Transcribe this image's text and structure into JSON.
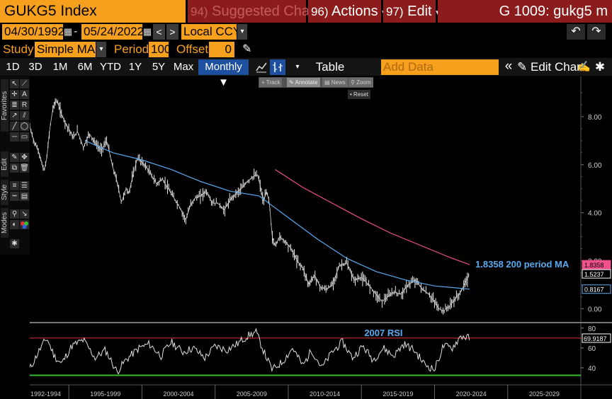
{
  "header": {
    "title": "GUKG5 Index",
    "suggested": {
      "num": "94)",
      "label": "Suggested Charts"
    },
    "actions": {
      "num": "96)",
      "label": "Actions"
    },
    "edit": {
      "num": "97)",
      "label": "Edit"
    },
    "window_id": "G 1009: gukg5 m",
    "caret": "▾"
  },
  "dates": {
    "start": "04/30/1992",
    "separator": "-",
    "end": "05/24/2022",
    "currency": "Local CCY",
    "prev": "<",
    "next": ">"
  },
  "study": {
    "label": "Study",
    "value": "Simple MA",
    "period_label": "Period",
    "period_value": "100",
    "offset_label": "Offset",
    "offset_value": "0"
  },
  "toolbar": {
    "periods": [
      "1D",
      "3D",
      "1M",
      "6M",
      "YTD",
      "1Y",
      "5Y",
      "Max"
    ],
    "frequency": "Monthly ▼",
    "table": "Table",
    "add_data_placeholder": "Add Data",
    "edit_chart": "Edit Chart",
    "chevrons": "«"
  },
  "palette": {
    "tabs": [
      "Favorites",
      "Edit",
      "Style",
      "Modes"
    ]
  },
  "hint_bar": {
    "track": "Track",
    "annotate": "Annotate",
    "news": "News",
    "zoom": "Zoom",
    "reset": "Reset"
  },
  "colors": {
    "accent_orange": "#f7a01e",
    "header_red": "#8c1c1c",
    "ma100_blue": "#5aaaf0",
    "ma200_pink": "#f0508c",
    "rsi_upper": "#e03030",
    "rsi_lower": "#30c030"
  },
  "chart_data": {
    "type": "line",
    "price_axis_ticks": [
      "8.00",
      "6.00",
      "4.00",
      "2.00",
      "0.00"
    ],
    "price_ylim": [
      -0.4,
      9.5
    ],
    "markers": {
      "ma200_value": "1.8358",
      "last_price": "1.5237",
      "ma100_value": "0.8167"
    },
    "ma200_label": "1.8358 200 period MA",
    "rsi_label": "2007 RSI",
    "rsi_ticks": [
      "80",
      "60",
      "40"
    ],
    "rsi_last": "69.9187",
    "rsi_ylim": [
      30,
      82
    ],
    "x_labels": [
      "1992-1994",
      "1995-1999",
      "2000-2004",
      "2005-2009",
      "2010-2014",
      "2015-2019",
      "2020-2024",
      "2025-2029"
    ],
    "xlim": [
      1992.33,
      2030
    ],
    "series": [
      {
        "name": "GUKG5 Index",
        "x": [
          1992.33,
          1992.6,
          1992.9,
          1993.1,
          1993.3,
          1993.5,
          1993.7,
          1993.9,
          1994.1,
          1994.3,
          1994.5,
          1994.8,
          1995.0,
          1995.3,
          1995.6,
          1996.0,
          1996.4,
          1996.8,
          1997.2,
          1997.6,
          1998.0,
          1998.3,
          1998.6,
          1998.9,
          1999.1,
          1999.4,
          1999.7,
          2000.0,
          2000.3,
          2000.7,
          2001.0,
          2001.4,
          2001.8,
          2002.2,
          2002.6,
          2003.0,
          2003.3,
          2003.6,
          2004.0,
          2004.4,
          2004.8,
          2005.2,
          2005.6,
          2006.0,
          2006.4,
          2006.8,
          2007.2,
          2007.6,
          2007.9,
          2008.1,
          2008.3,
          2008.5,
          2008.7,
          2008.9,
          2009.1,
          2009.4,
          2009.8,
          2010.2,
          2010.6,
          2011.0,
          2011.4,
          2011.8,
          2012.2,
          2012.6,
          2013.0,
          2013.5,
          2014.0,
          2014.5,
          2015.0,
          2015.5,
          2016.0,
          2016.4,
          2016.8,
          2017.2,
          2017.7,
          2018.2,
          2018.7,
          2019.2,
          2019.6,
          2020.0,
          2020.3,
          2020.6,
          2021.0,
          2021.4,
          2021.8,
          2022.1,
          2022.3,
          2022.4
        ],
        "y": [
          7.6,
          7.0,
          6.6,
          6.2,
          5.7,
          6.3,
          7.5,
          8.3,
          8.7,
          8.5,
          8.1,
          7.7,
          7.5,
          7.1,
          7.4,
          6.7,
          7.3,
          6.9,
          6.6,
          7.0,
          5.9,
          5.3,
          4.4,
          5.0,
          4.8,
          5.6,
          6.3,
          6.1,
          5.9,
          5.5,
          5.2,
          5.4,
          5.0,
          4.6,
          4.2,
          3.7,
          4.3,
          4.6,
          4.7,
          4.9,
          4.4,
          4.4,
          4.1,
          4.5,
          4.8,
          5.0,
          5.3,
          5.5,
          5.6,
          5.1,
          4.4,
          4.9,
          4.5,
          3.0,
          2.6,
          3.0,
          2.8,
          2.5,
          2.0,
          1.7,
          1.0,
          1.4,
          0.9,
          0.8,
          1.0,
          1.8,
          1.9,
          1.2,
          1.3,
          1.0,
          0.6,
          0.3,
          0.5,
          0.7,
          0.6,
          1.0,
          1.2,
          0.8,
          0.6,
          0.3,
          0.0,
          -0.1,
          0.1,
          0.4,
          0.7,
          1.1,
          1.3,
          1.5237
        ]
      },
      {
        "name": "100 period MA",
        "x": [
          1996.1,
          1998.0,
          2000.0,
          2002.0,
          2004.0,
          2006.0,
          2008.0,
          2010.0,
          2012.0,
          2014.0,
          2016.0,
          2018.0,
          2020.0,
          2022.4
        ],
        "y": [
          7.0,
          6.5,
          6.2,
          5.8,
          5.3,
          4.9,
          4.7,
          3.8,
          2.9,
          2.1,
          1.55,
          1.2,
          0.95,
          0.8167
        ]
      },
      {
        "name": "200 period MA",
        "x": [
          2009.1,
          2011.0,
          2013.0,
          2015.0,
          2017.0,
          2019.0,
          2021.0,
          2022.4
        ],
        "y": [
          5.8,
          5.05,
          4.4,
          3.75,
          3.15,
          2.65,
          2.15,
          1.8358
        ]
      },
      {
        "name": "RSI",
        "x": [
          1992.3,
          1993.0,
          1993.5,
          1994.0,
          1994.5,
          1995.2,
          1996.0,
          1996.8,
          1997.5,
          1998.3,
          1998.9,
          1999.8,
          2000.5,
          2001.3,
          2002.0,
          2002.8,
          2003.5,
          2004.3,
          2005.0,
          2005.8,
          2006.5,
          2007.2,
          2007.8,
          2008.4,
          2008.9,
          2009.6,
          2010.3,
          2011.0,
          2011.6,
          2012.3,
          2013.0,
          2013.7,
          2014.4,
          2015.1,
          2015.8,
          2016.5,
          2017.2,
          2017.9,
          2018.6,
          2019.3,
          2020.0,
          2020.6,
          2021.2,
          2021.8,
          2022.4
        ],
        "y": [
          38,
          58,
          70,
          52,
          44,
          62,
          68,
          50,
          58,
          36,
          48,
          60,
          64,
          52,
          66,
          56,
          60,
          50,
          62,
          58,
          64,
          72,
          76,
          54,
          38,
          46,
          60,
          42,
          58,
          40,
          56,
          66,
          50,
          62,
          48,
          60,
          52,
          64,
          58,
          44,
          38,
          62,
          60,
          72,
          69.9187
        ]
      }
    ]
  }
}
